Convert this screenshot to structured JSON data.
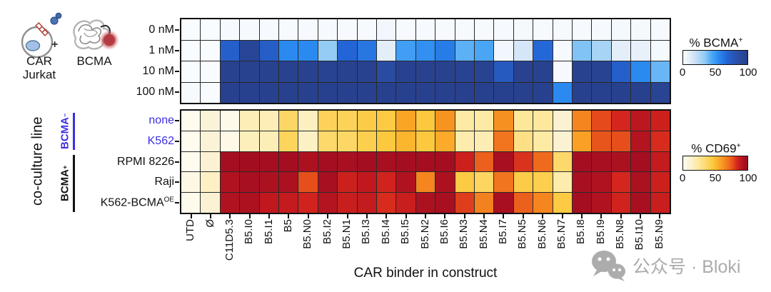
{
  "cartoon": {
    "car_line1": "CAR",
    "car_line2": "Jurkat",
    "plus": "+",
    "bcma_label": "BCMA"
  },
  "left_axis": {
    "group_label": "co-culture line",
    "groups": [
      {
        "base": "BCMA",
        "sup": "−",
        "color": "#3c2ee0"
      },
      {
        "base": "BCMA",
        "sup": "+",
        "color": "#111111"
      }
    ]
  },
  "x_axis": {
    "title": "CAR binder in construct"
  },
  "colorbars": [
    {
      "title_base": "% BCMA",
      "title_sup": "+",
      "ticks": [
        "0",
        "50",
        "100"
      ]
    },
    {
      "title_base": "% CD69",
      "title_sup": "+",
      "ticks": [
        "0",
        "50",
        "100"
      ]
    }
  ],
  "watermark": {
    "text": "公众号 · Bloki"
  },
  "chart_data": [
    {
      "type": "heatmap",
      "title": "% BCMA+",
      "legend_range": [
        0,
        100
      ],
      "rows": [
        "0 nM",
        "1 nM",
        "10 nM",
        "100 nM"
      ],
      "columns": [
        "UTD",
        "Ø",
        "C11D5.3",
        "B5.I0",
        "B5.I1",
        "B5",
        "B5.N0",
        "B5.I2",
        "B5.N1",
        "B5.I3",
        "B5.I4",
        "B5.I5",
        "B5.N2",
        "B5.I6",
        "B5.N3",
        "B5.N4",
        "B5.I7",
        "B5.N5",
        "B5.N6",
        "B5.N7",
        "B5.I8",
        "B5.I9",
        "B5.N8",
        "B5.I10",
        "B5.N9"
      ],
      "values": [
        [
          1,
          1,
          2,
          2,
          2,
          2,
          2,
          2,
          2,
          2,
          4,
          2,
          2,
          2,
          2,
          2,
          2,
          3,
          2,
          2,
          2,
          2,
          3,
          3,
          2
        ],
        [
          1,
          1,
          72,
          93,
          73,
          55,
          55,
          33,
          68,
          62,
          10,
          48,
          53,
          60,
          42,
          45,
          4,
          15,
          67,
          2,
          36,
          28,
          10,
          8,
          3
        ],
        [
          1,
          1,
          97,
          97,
          97,
          97,
          97,
          96,
          97,
          97,
          88,
          97,
          97,
          97,
          96,
          96,
          76,
          97,
          97,
          2,
          97,
          96,
          72,
          55,
          40
        ],
        [
          2,
          1,
          98,
          98,
          98,
          98,
          98,
          98,
          98,
          98,
          98,
          98,
          98,
          98,
          98,
          98,
          98,
          98,
          98,
          55,
          98,
          98,
          98,
          98,
          95
        ]
      ],
      "colormap": [
        {
          "v": 0,
          "c": "#fafdff"
        },
        {
          "v": 10,
          "c": "#e4eef9"
        },
        {
          "v": 20,
          "c": "#c6ddf6"
        },
        {
          "v": 33,
          "c": "#93ccf5"
        },
        {
          "v": 45,
          "c": "#4aa6f5"
        },
        {
          "v": 55,
          "c": "#2b8af0"
        },
        {
          "v": 68,
          "c": "#2365d6"
        },
        {
          "v": 82,
          "c": "#2a52ac"
        },
        {
          "v": 100,
          "c": "#273f8a"
        }
      ]
    },
    {
      "type": "heatmap",
      "title": "% CD69+",
      "legend_range": [
        0,
        100
      ],
      "rows": [
        {
          "label": "none",
          "sup": "",
          "color": "#3c2ee0"
        },
        {
          "label": "K562",
          "sup": "",
          "color": "#3c2ee0"
        },
        {
          "label": "RPMI 8226",
          "sup": "",
          "color": "#111111"
        },
        {
          "label": "Raji",
          "sup": "",
          "color": "#111111"
        },
        {
          "label": "K562-BCMA",
          "sup": "OE",
          "color": "#111111"
        }
      ],
      "columns": [
        "UTD",
        "Ø",
        "C11D5.3",
        "B5.I0",
        "B5.I1",
        "B5",
        "B5.N0",
        "B5.I2",
        "B5.N1",
        "B5.I3",
        "B5.I4",
        "B5.I5",
        "B5.N2",
        "B5.I6",
        "B5.N3",
        "B5.N4",
        "B5.I7",
        "B5.N5",
        "B5.N6",
        "B5.N7",
        "B5.I8",
        "B5.I9",
        "B5.N8",
        "B5.I10",
        "B5.N9"
      ],
      "values": [
        [
          1,
          9,
          3,
          17,
          17,
          37,
          15,
          40,
          40,
          44,
          45,
          57,
          46,
          62,
          22,
          22,
          63,
          25,
          24,
          10,
          66,
          78,
          84,
          90,
          86
        ],
        [
          1,
          9,
          4,
          16,
          17,
          39,
          14,
          36,
          37,
          42,
          46,
          52,
          46,
          55,
          20,
          18,
          70,
          30,
          22,
          10,
          58,
          76,
          77,
          92,
          83
        ],
        [
          1,
          10,
          96,
          97,
          96,
          96,
          94,
          96,
          95,
          96,
          95,
          96,
          96,
          96,
          86,
          74,
          95,
          82,
          72,
          36,
          96,
          95,
          94,
          96,
          88
        ],
        [
          5,
          14,
          93,
          95,
          94,
          94,
          77,
          95,
          86,
          89,
          85,
          93,
          66,
          94,
          45,
          38,
          70,
          44,
          42,
          20,
          95,
          93,
          84,
          94,
          86
        ],
        [
          2,
          10,
          93,
          94,
          89,
          88,
          85,
          92,
          87,
          88,
          83,
          87,
          94,
          95,
          80,
          67,
          95,
          74,
          66,
          45,
          96,
          93,
          85,
          95,
          87
        ]
      ],
      "colormap": [
        {
          "v": 0,
          "c": "#fffdf2"
        },
        {
          "v": 9,
          "c": "#fbf3d8"
        },
        {
          "v": 16,
          "c": "#fdefbc"
        },
        {
          "v": 23,
          "c": "#fde9a0"
        },
        {
          "v": 31,
          "c": "#fddf82"
        },
        {
          "v": 39,
          "c": "#fdd45c"
        },
        {
          "v": 47,
          "c": "#fcc63a"
        },
        {
          "v": 56,
          "c": "#fba827"
        },
        {
          "v": 64,
          "c": "#f58d1f"
        },
        {
          "v": 71,
          "c": "#f0701e"
        },
        {
          "v": 78,
          "c": "#e44a1c"
        },
        {
          "v": 84,
          "c": "#d4261d"
        },
        {
          "v": 89,
          "c": "#c0181e"
        },
        {
          "v": 95,
          "c": "#a80f20"
        },
        {
          "v": 100,
          "c": "#9a0c1e"
        }
      ]
    }
  ]
}
